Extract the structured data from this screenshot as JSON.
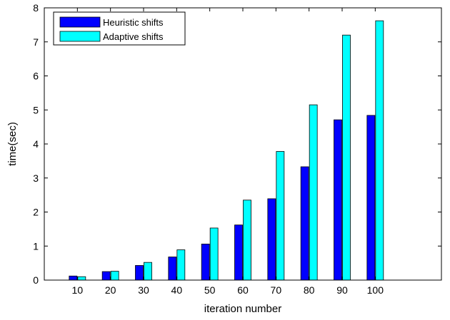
{
  "chart_data": {
    "type": "bar",
    "xlabel": "iteration number",
    "ylabel": "time(sec)",
    "categories": [
      "10",
      "20",
      "30",
      "40",
      "50",
      "60",
      "70",
      "80",
      "90",
      "100"
    ],
    "x_range": [
      0,
      120
    ],
    "ylim": [
      0,
      8
    ],
    "yticks": [
      "0",
      "1",
      "2",
      "3",
      "4",
      "5",
      "6",
      "7",
      "8"
    ],
    "grid": false,
    "legend_position": "top-left",
    "series": [
      {
        "name": "Heuristic shifts",
        "color": "#0000ff",
        "values": [
          0.12,
          0.25,
          0.43,
          0.68,
          1.06,
          1.62,
          2.39,
          3.33,
          4.71,
          4.84
        ]
      },
      {
        "name": "Adaptive shifts",
        "color": "#00ffff",
        "values": [
          0.1,
          0.26,
          0.52,
          0.89,
          1.53,
          2.35,
          3.78,
          5.15,
          7.2,
          7.62
        ]
      }
    ]
  }
}
